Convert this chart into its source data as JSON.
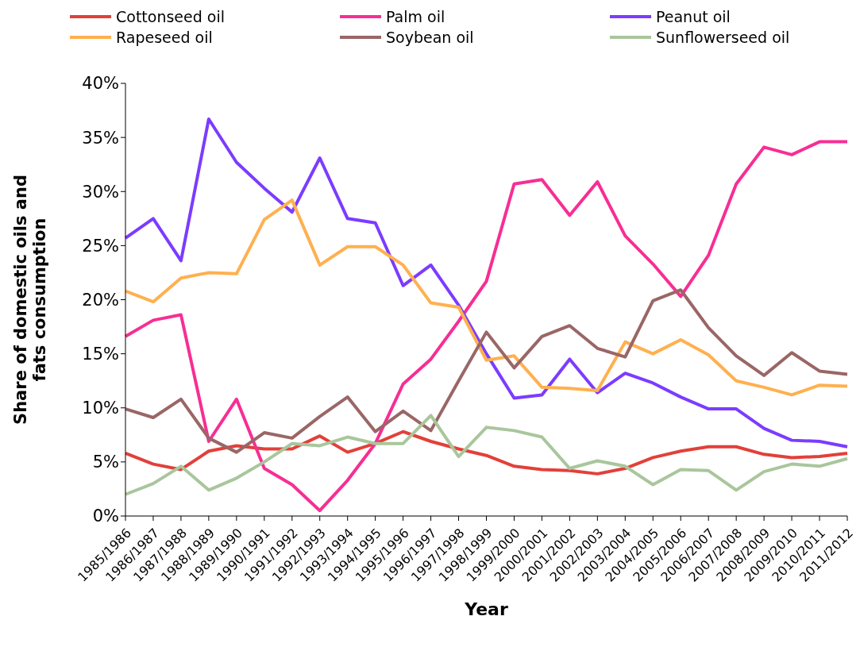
{
  "chart_data": {
    "type": "line",
    "xlabel": "Year",
    "ylabel": "Share of domestic oils and fats consumption",
    "categories": [
      "1985/1986",
      "1986/1987",
      "1987/1988",
      "1988/1989",
      "1989/1990",
      "1990/1991",
      "1991/1992",
      "1992/1993",
      "1993/1994",
      "1994/1995",
      "1995/1996",
      "1996/1997",
      "1997/1998",
      "1998/1999",
      "1999/2000",
      "2000/2001",
      "2001/2002",
      "2002/2003",
      "2003/2004",
      "2004/2005",
      "2005/2006",
      "2006/2007",
      "2007/2008",
      "2008/2009",
      "2009/2010",
      "2010/2011",
      "2011/2012"
    ],
    "series": [
      {
        "name": "Cottonseed oil",
        "color": "#e2403a",
        "values": [
          5.8,
          4.8,
          4.3,
          6,
          6.5,
          6.2,
          6.2,
          7.4,
          5.9,
          6.7,
          7.8,
          6.9,
          6.2,
          5.6,
          4.6,
          4.3,
          4.2,
          3.9,
          4.4,
          5.4,
          6,
          6.4,
          6.4,
          5.7,
          5.4,
          5.5,
          5.8
        ]
      },
      {
        "name": "Palm oil",
        "color": "#f72e94",
        "values": [
          16.6,
          18.1,
          18.6,
          6.9,
          10.8,
          4.4,
          2.9,
          0.5,
          3.3,
          6.7,
          12.2,
          14.5,
          18,
          21.7,
          30.7,
          31.1,
          27.8,
          30.9,
          25.9,
          23.3,
          20.3,
          24.1,
          30.7,
          34.1,
          33.4,
          34.6,
          34.6
        ]
      },
      {
        "name": "Peanut oil",
        "color": "#7b3cff",
        "values": [
          25.7,
          27.5,
          23.6,
          36.7,
          32.7,
          30.3,
          28.1,
          33.1,
          27.5,
          27.1,
          21.3,
          23.2,
          19.5,
          15,
          10.9,
          11.2,
          14.5,
          11.4,
          13.2,
          12.3,
          11,
          9.9,
          9.9,
          8.1,
          7,
          6.9,
          6.4
        ]
      },
      {
        "name": "Rapeseed oil",
        "color": "#ffb04f",
        "values": [
          20.8,
          19.8,
          22,
          22.5,
          22.4,
          27.4,
          29.2,
          23.2,
          24.9,
          24.9,
          23.2,
          19.7,
          19.3,
          14.4,
          14.8,
          11.9,
          11.8,
          11.6,
          16.1,
          15,
          16.3,
          14.9,
          12.5,
          11.9,
          11.2,
          12.1,
          12
        ]
      },
      {
        "name": "Soybean oil",
        "color": "#9a6666",
        "values": [
          9.9,
          9.1,
          10.8,
          7.2,
          5.9,
          7.7,
          7.2,
          9.2,
          11,
          7.8,
          9.7,
          7.9,
          12.5,
          17,
          13.7,
          16.6,
          17.6,
          15.5,
          14.7,
          19.9,
          20.9,
          17.4,
          14.8,
          13,
          15.1,
          13.4,
          13.1
        ]
      },
      {
        "name": "Sunflowerseed oil",
        "color": "#a9c69c",
        "values": [
          2,
          3,
          4.6,
          2.4,
          3.5,
          5,
          6.7,
          6.5,
          7.3,
          6.7,
          6.7,
          9.3,
          5.5,
          8.2,
          7.9,
          7.3,
          4.4,
          5.1,
          4.6,
          2.9,
          4.3,
          4.2,
          2.4,
          4.1,
          4.8,
          4.6,
          5.3
        ]
      }
    ],
    "ylim": [
      0,
      40
    ],
    "yticks": [
      {
        "value": 0,
        "label": "0%"
      },
      {
        "value": 5,
        "label": "5%"
      },
      {
        "value": 10,
        "label": "10%"
      },
      {
        "value": 15,
        "label": "15%"
      },
      {
        "value": 20,
        "label": "20%"
      },
      {
        "value": 25,
        "label": "25%"
      },
      {
        "value": 30,
        "label": "30%"
      },
      {
        "value": 35,
        "label": "35%"
      },
      {
        "value": 40,
        "label": "40%"
      }
    ],
    "grid": false,
    "legend": "top",
    "marker": "none",
    "line_style": "solid"
  }
}
